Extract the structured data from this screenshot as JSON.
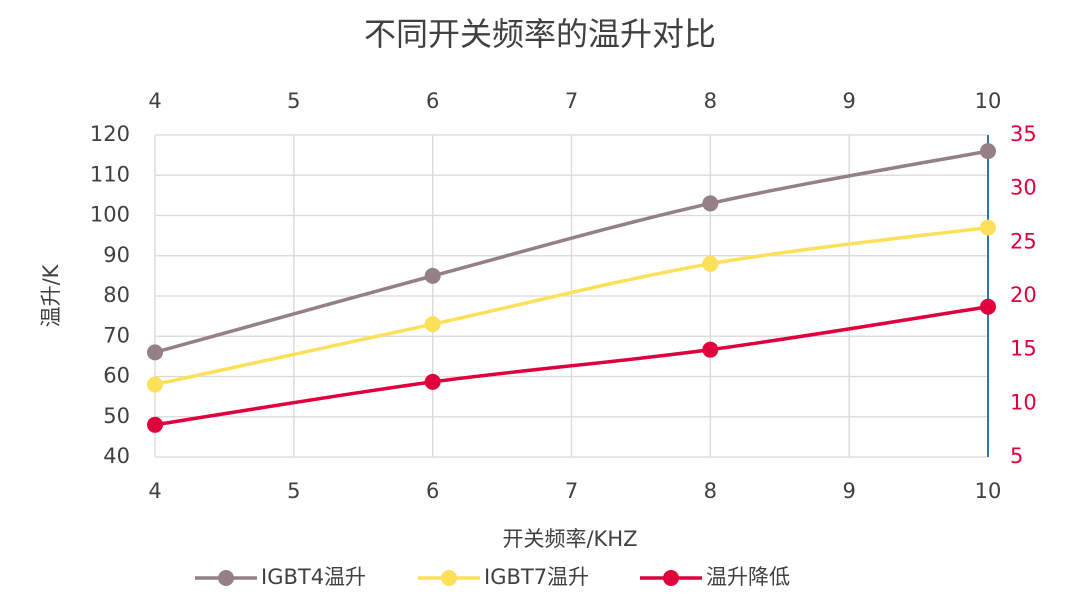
{
  "chart_data": {
    "type": "line",
    "title": "不同开关频率的温升对比",
    "x_label": "开关频率/KHZ",
    "y_label": "温升/K",
    "x": [
      4,
      6,
      8,
      10
    ],
    "xlim": [
      4,
      10
    ],
    "xticks": [
      4,
      5,
      6,
      7,
      8,
      9,
      10
    ],
    "x2lim": [
      4,
      10
    ],
    "x2ticks": [
      4,
      5,
      6,
      7,
      8,
      9,
      10
    ],
    "ylim": [
      40,
      120
    ],
    "yticks": [
      40,
      50,
      60,
      70,
      80,
      90,
      100,
      110,
      120
    ],
    "y2lim": [
      5,
      35
    ],
    "y2ticks": [
      5,
      10,
      15,
      20,
      25,
      30,
      35
    ],
    "y2color": "#e0003c",
    "grid": true,
    "smooth": true,
    "legend": "bottom",
    "series": [
      {
        "name": "IGBT4温升",
        "color": "#948085",
        "values": [
          66,
          85,
          103,
          116
        ]
      },
      {
        "name": "IGBT7温升",
        "color": "#fde05a",
        "values": [
          58,
          73,
          88,
          97
        ]
      },
      {
        "name": "温升降低",
        "color": "#e0003c",
        "axis": "y2",
        "values": [
          8,
          12,
          15,
          19
        ]
      }
    ]
  }
}
